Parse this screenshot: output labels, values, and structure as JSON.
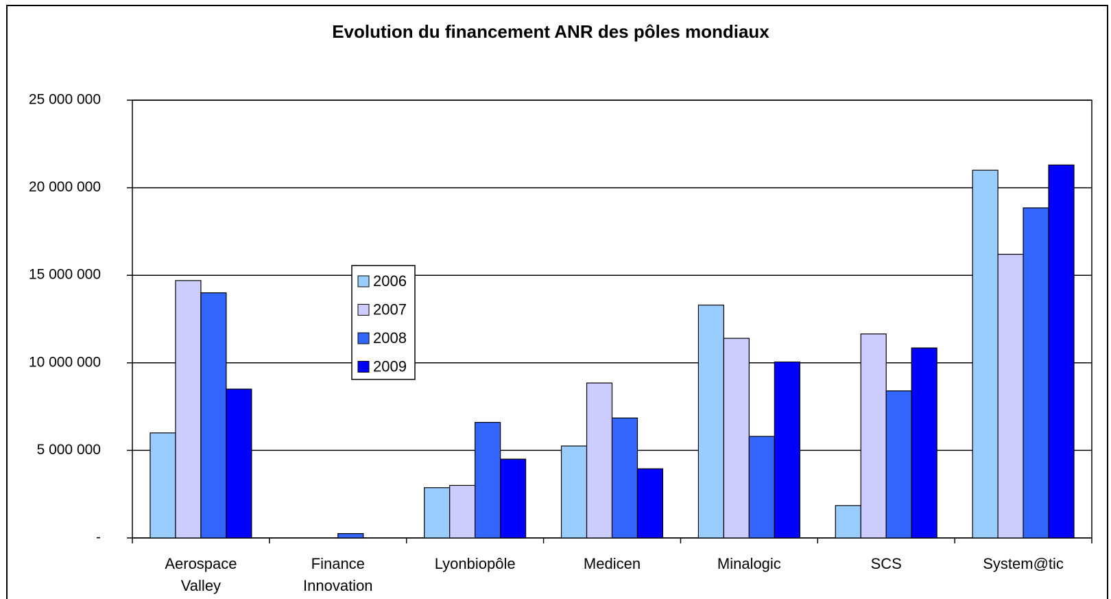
{
  "chart_data": {
    "type": "bar",
    "title": "Evolution du financement ANR des pôles mondiaux",
    "categories": [
      "Aerospace Valley",
      "Finance Innovation",
      "Lyonbiopôle",
      "Medicen",
      "Minalogic",
      "SCS",
      "System@tic"
    ],
    "series": [
      {
        "name": "2006",
        "color": "#99ccff",
        "values": [
          6000000,
          0,
          2870000,
          5250000,
          13300000,
          1850000,
          21000000
        ]
      },
      {
        "name": "2007",
        "color": "#ccccff",
        "values": [
          14700000,
          0,
          3000000,
          8850000,
          11400000,
          11650000,
          16200000
        ]
      },
      {
        "name": "2008",
        "color": "#3366ff",
        "values": [
          14000000,
          250000,
          6600000,
          6850000,
          5800000,
          8400000,
          18850000
        ]
      },
      {
        "name": "2009",
        "color": "#0000ff",
        "values": [
          8500000,
          0,
          4500000,
          3950000,
          10050000,
          10850000,
          21300000
        ]
      }
    ],
    "ylim": [
      0,
      25000000
    ],
    "yticks": [
      {
        "value": 0,
        "label": "-"
      },
      {
        "value": 5000000,
        "label": "5 000 000"
      },
      {
        "value": 10000000,
        "label": "10 000 000"
      },
      {
        "value": 15000000,
        "label": "15 000 000"
      },
      {
        "value": 20000000,
        "label": "20 000 000"
      },
      {
        "value": 25000000,
        "label": "25 000 000"
      }
    ],
    "grid": true
  }
}
